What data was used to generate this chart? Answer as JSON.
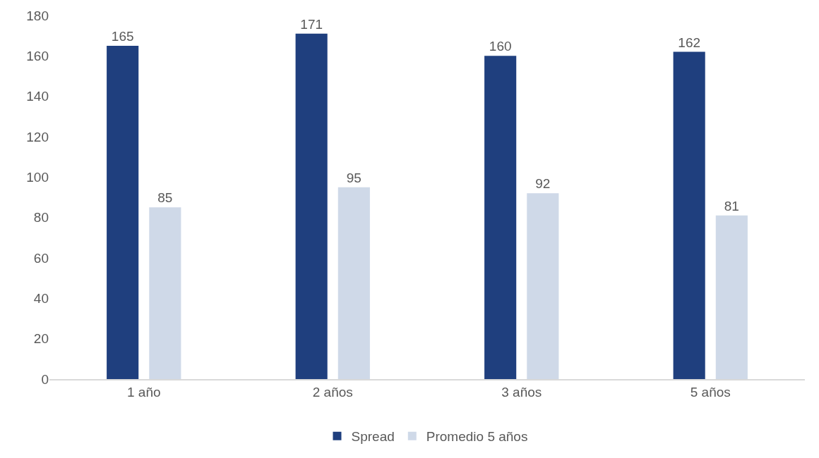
{
  "chart_data": {
    "type": "bar",
    "categories": [
      "1 año",
      "2 años",
      "3 años",
      "5 años"
    ],
    "series": [
      {
        "name": "Spread",
        "color": "#1f3f7e",
        "values": [
          165,
          171,
          160,
          162
        ]
      },
      {
        "name": "Promedio 5 años",
        "color": "#cfd9e8",
        "values": [
          85,
          95,
          92,
          81
        ]
      }
    ],
    "ylim": [
      0,
      180
    ],
    "yticks": [
      0,
      20,
      40,
      60,
      80,
      100,
      120,
      140,
      160,
      180
    ],
    "grid": false,
    "legend": "bottom",
    "data_labels": true
  }
}
